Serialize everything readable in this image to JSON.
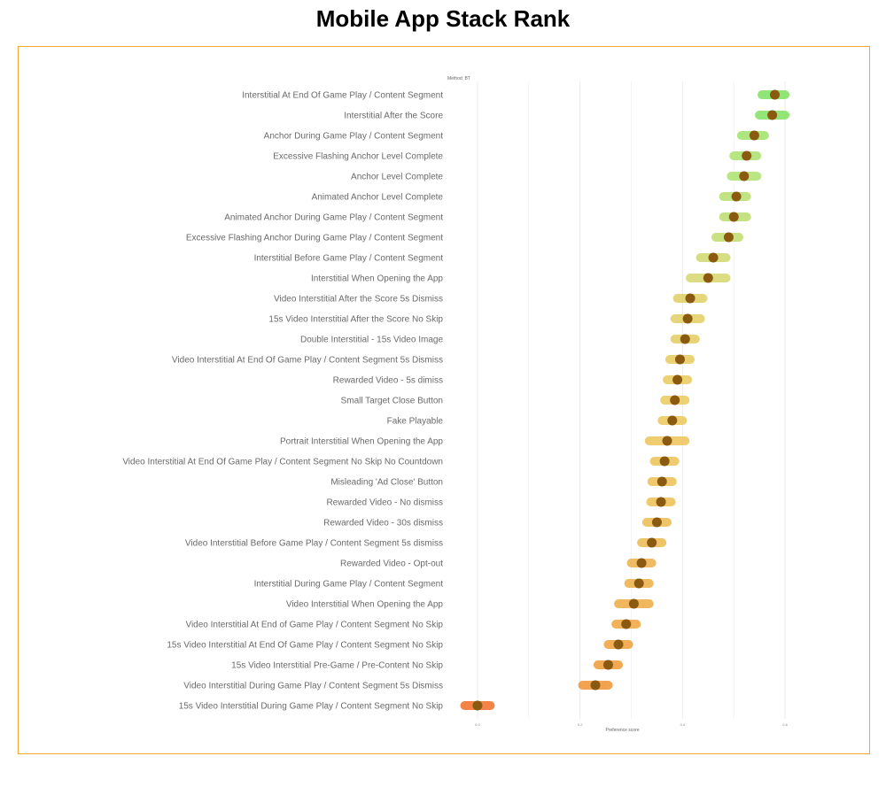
{
  "title": "Mobile App Stack Rank",
  "chart_data": {
    "type": "scatter",
    "title": "Mobile App Stack Rank",
    "xlabel": "Preference score",
    "ylabel": "",
    "legend_title": "Method: BT",
    "xlim": [
      -0.05,
      0.65
    ],
    "xticks": [
      "0.0",
      "0.2",
      "0.4",
      "0.6"
    ],
    "grid": true,
    "categories": [
      "Interstitial At End Of Game Play / Content Segment",
      "Interstitial After the Score",
      "Anchor During Game Play / Content Segment",
      "Excessive Flashing Anchor Level Complete",
      "Anchor Level Complete",
      "Animated Anchor Level Complete",
      "Animated Anchor During Game Play / Content Segment",
      "Excessive Flashing Anchor During Game Play / Content Segment",
      "Interstitial Before Game Play / Content Segment",
      "Interstitial When Opening the App",
      "Video Interstitial After the Score 5s Dismiss",
      "15s Video Interstitial After the Score No Skip",
      "Double Interstitial - 15s Video Image",
      "Video Interstitial At End Of Game Play / Content Segment 5s Dismiss",
      "Rewarded Video - 5s dimiss",
      "Small Target Close Button",
      "Fake Playable",
      "Portrait Interstitial When Opening the App",
      "Video Interstitial At End Of Game Play / Content Segment No Skip No Countdown",
      "Misleading 'Ad Close' Button",
      "Rewarded Video - No dismiss",
      "Rewarded Video - 30s dismiss",
      "Video Interstitial Before Game Play / Content Segment 5s dismiss",
      "Rewarded Video - Opt-out",
      "Interstitial During Game Play / Content Segment",
      "Video Interstitial When Opening the App",
      "Video Interstitial At End of Game Play / Content Segment No Skip",
      "15s Video Interstitial At End Of Game Play / Content Segment No Skip",
      "15s Video Interstitial Pre-Game / Pre-Content No Skip",
      "Video Interstitial During Game Play / Content Segment 5s Dismiss",
      "15s Video Interstitial During Game Play / Content Segment No Skip"
    ],
    "values": [
      0.58,
      0.575,
      0.54,
      0.525,
      0.52,
      0.505,
      0.5,
      0.49,
      0.46,
      0.45,
      0.415,
      0.41,
      0.405,
      0.395,
      0.39,
      0.385,
      0.38,
      0.37,
      0.365,
      0.36,
      0.358,
      0.35,
      0.34,
      0.32,
      0.315,
      0.305,
      0.29,
      0.275,
      0.255,
      0.23,
      0.0
    ],
    "ci_low": [
      0.555,
      0.55,
      0.515,
      0.5,
      0.495,
      0.48,
      0.48,
      0.465,
      0.435,
      0.415,
      0.39,
      0.385,
      0.385,
      0.375,
      0.37,
      0.365,
      0.36,
      0.335,
      0.345,
      0.34,
      0.338,
      0.33,
      0.32,
      0.3,
      0.295,
      0.275,
      0.27,
      0.255,
      0.235,
      0.205,
      -0.025
    ],
    "ci_high": [
      0.6,
      0.6,
      0.56,
      0.545,
      0.545,
      0.525,
      0.525,
      0.51,
      0.485,
      0.485,
      0.44,
      0.435,
      0.425,
      0.415,
      0.41,
      0.405,
      0.4,
      0.405,
      0.385,
      0.38,
      0.378,
      0.37,
      0.36,
      0.34,
      0.335,
      0.335,
      0.31,
      0.295,
      0.275,
      0.255,
      0.025
    ]
  }
}
